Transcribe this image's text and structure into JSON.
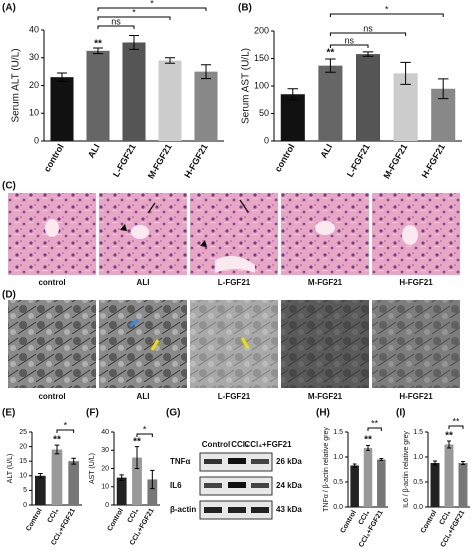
{
  "chart_data": [
    {
      "type": "bar",
      "panel": "(A)",
      "y_label": "Serum ALT (U/L)",
      "categories": [
        "control",
        "ALI",
        "L-FGF21",
        "M-FGF21",
        "H-FGF21"
      ],
      "values": [
        23,
        32.5,
        35.5,
        29,
        25
      ],
      "errors": [
        1.5,
        1,
        2.5,
        1,
        2.5
      ],
      "colors": [
        "#111111",
        "#666666",
        "#555555",
        "#cccccc",
        "#888888"
      ],
      "ylim": [
        0,
        40
      ],
      "yticks": [
        0,
        10,
        20,
        30,
        40
      ],
      "annotations": [
        "**",
        "ns",
        "*",
        "*"
      ]
    },
    {
      "type": "bar",
      "panel": "(B)",
      "y_label": "Serum AST (U/L)",
      "categories": [
        "control",
        "ALI",
        "L-FGF21",
        "M-FGF21",
        "H-FGF21"
      ],
      "values": [
        85,
        137,
        158,
        123,
        95
      ],
      "errors": [
        10,
        12,
        4,
        20,
        18
      ],
      "colors": [
        "#111111",
        "#666666",
        "#555555",
        "#cccccc",
        "#888888"
      ],
      "ylim": [
        0,
        200
      ],
      "yticks": [
        0,
        50,
        100,
        150,
        200
      ],
      "annotations": [
        "**",
        "ns",
        "ns",
        "*"
      ]
    },
    {
      "type": "bar",
      "panel": "(E)",
      "y_label": "ALT (U/L)",
      "categories": [
        "Control",
        "CCl₄",
        "CCl₄+FGF21"
      ],
      "values": [
        10,
        19,
        15
      ],
      "errors": [
        0.8,
        1.5,
        1
      ],
      "colors": [
        "#222222",
        "#999999",
        "#777777"
      ],
      "ylim": [
        0,
        25
      ],
      "yticks": [
        0,
        5,
        10,
        15,
        20,
        25
      ],
      "annotations": [
        "**",
        "*"
      ]
    },
    {
      "type": "bar",
      "panel": "(F)",
      "y_label": "AST (U/L)",
      "categories": [
        "Control",
        "CCl₄",
        "CCl₄+FGF21"
      ],
      "values": [
        15,
        26,
        14
      ],
      "errors": [
        1.5,
        6,
        5
      ],
      "colors": [
        "#222222",
        "#999999",
        "#777777"
      ],
      "ylim": [
        0,
        40
      ],
      "yticks": [
        0,
        10,
        20,
        30,
        40
      ],
      "annotations": [
        "**",
        "*"
      ]
    },
    {
      "type": "bar",
      "panel": "(H)",
      "y_label": "TNFα / β-actin relative grey",
      "categories": [
        "Control",
        "CCl₄",
        "CCl₄+FGF21"
      ],
      "values": [
        0.83,
        1.18,
        0.95
      ],
      "errors": [
        0.03,
        0.05,
        0.02
      ],
      "colors": [
        "#222222",
        "#999999",
        "#777777"
      ],
      "ylim": [
        0,
        1.5
      ],
      "yticks": [
        {
          "value": 0,
          "label": "0.0"
        },
        0.5,
        {
          "value": 1,
          "label": "1.0"
        },
        1.5
      ],
      "annotations": [
        "**",
        "**"
      ]
    },
    {
      "type": "bar",
      "panel": "(I)",
      "y_label": "IL6 / β-actin relative grey",
      "categories": [
        "Control",
        "CCl₄",
        "CCl₄+FGF21"
      ],
      "values": [
        0.88,
        1.25,
        0.88
      ],
      "errors": [
        0.04,
        0.07,
        0.03
      ],
      "colors": [
        "#222222",
        "#999999",
        "#777777"
      ],
      "ylim": [
        0,
        1.5
      ],
      "yticks": [
        {
          "value": 0,
          "label": "0.0"
        },
        0.5,
        {
          "value": 1,
          "label": "1.0"
        },
        1.5
      ],
      "annotations": [
        "**",
        "**"
      ]
    }
  ],
  "histology": {
    "panel": "(C)",
    "captions": [
      "control",
      "ALI",
      "L-FGF21",
      "M-FGF21",
      "H-FGF21"
    ]
  },
  "electron_microscopy": {
    "panel": "(D)",
    "captions": [
      "control",
      "ALI",
      "L-FGF21",
      "M-FGF21",
      "H-FGF21"
    ]
  },
  "blot": {
    "panel": "(G)",
    "columns": [
      "Control",
      "CCl₄",
      "CCl₄+FGF21"
    ],
    "rows": [
      {
        "label": "TNFα",
        "size": "26 kDa"
      },
      {
        "label": "IL6",
        "size": "24 kDa"
      },
      {
        "label": "β-actin",
        "size": "43 kDa"
      }
    ]
  }
}
